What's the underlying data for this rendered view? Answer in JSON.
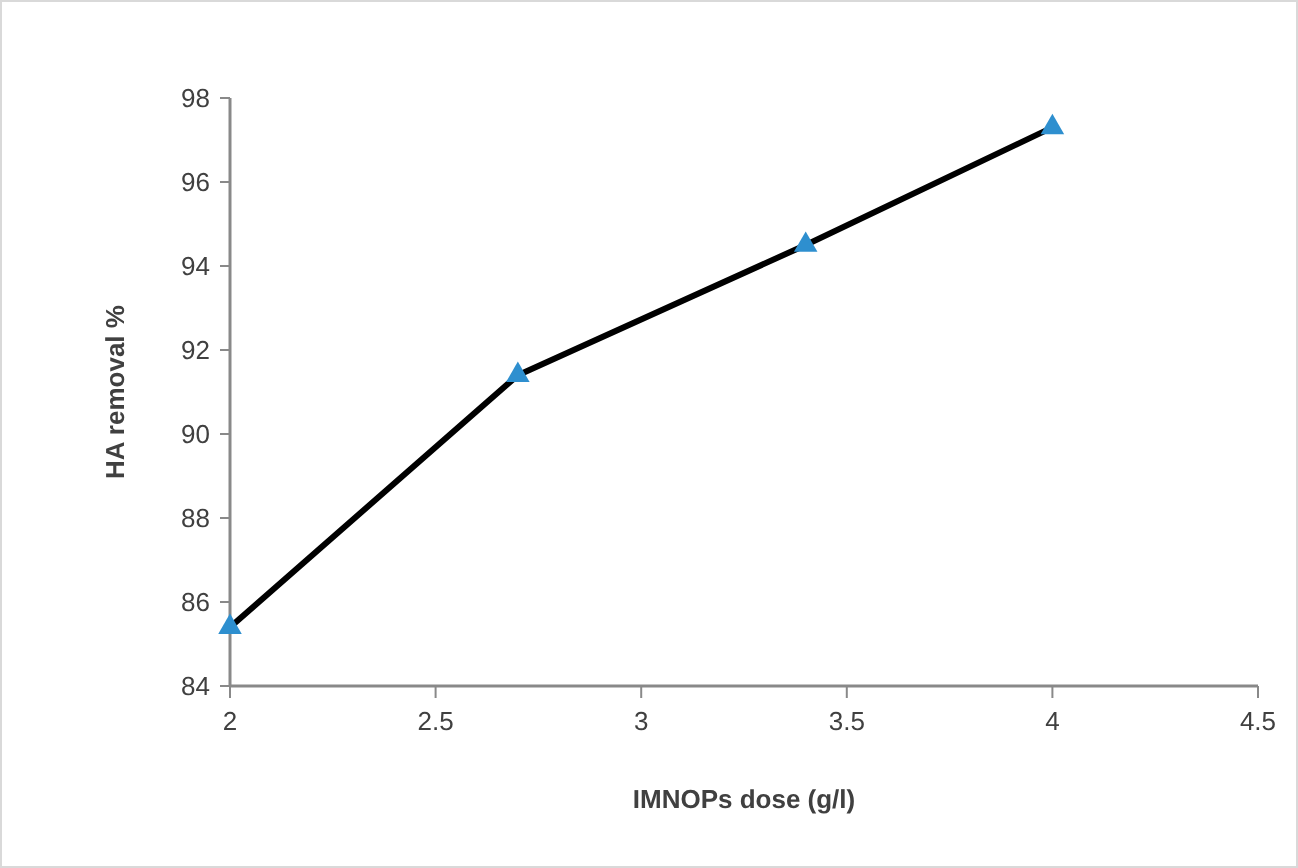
{
  "chart_data": {
    "type": "line",
    "xlabel": "IMNOPs dose (g/l)",
    "ylabel": "HA removal %",
    "x": [
      2,
      2.7,
      3.4,
      4
    ],
    "series": [
      {
        "color": "#000000",
        "colors": [
          "#2e8fcf",
          "#2e8fcf",
          "#2e8fcf",
          "#2e8fcf"
        ],
        "values": [
          85.4,
          91.4,
          94.5,
          97.3
        ]
      }
    ],
    "xlim": [
      2,
      4.5
    ],
    "xticks": [
      2,
      2.5,
      3,
      3.5,
      4,
      4.5
    ],
    "ylim": [
      84,
      98
    ],
    "yticks": [
      84,
      86,
      88,
      90,
      92,
      94,
      96,
      98
    ],
    "marker": "triangle",
    "grid": false
  }
}
